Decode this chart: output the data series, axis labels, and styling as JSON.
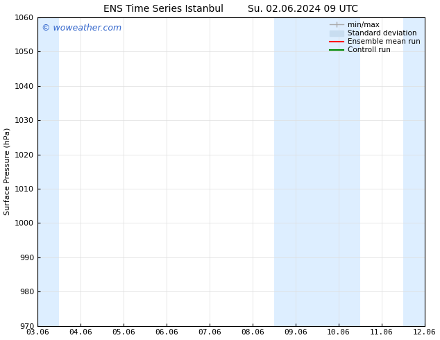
{
  "title": "ENS Time Series Istanbul        Su. 02.06.2024 09 UTC",
  "ylabel": "Surface Pressure (hPa)",
  "ylim": [
    970,
    1060
  ],
  "yticks": [
    970,
    980,
    990,
    1000,
    1010,
    1020,
    1030,
    1040,
    1050,
    1060
  ],
  "xtick_labels": [
    "03.06",
    "04.06",
    "05.06",
    "06.06",
    "07.06",
    "08.06",
    "09.06",
    "10.06",
    "11.06",
    "12.06"
  ],
  "background_color": "#ffffff",
  "plot_bg_color": "#ffffff",
  "shaded_color": "#ddeeff",
  "watermark_text": "© woweather.com",
  "watermark_color": "#3366cc",
  "legend_minmax_color": "#aaaaaa",
  "legend_std_color": "#c8ddf0",
  "legend_ens_color": "#ff0000",
  "legend_ctrl_color": "#008800",
  "font_size_title": 10,
  "font_size_ylabel": 8,
  "font_size_tick": 8,
  "font_size_legend": 7.5,
  "font_size_watermark": 9
}
